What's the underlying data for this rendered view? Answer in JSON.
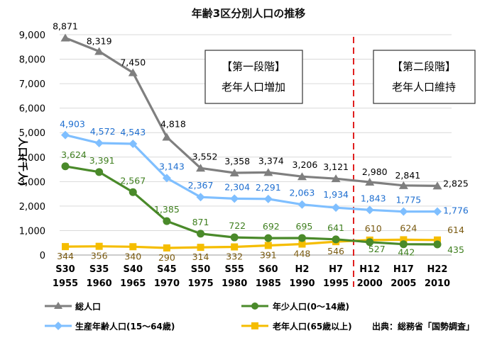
{
  "chart_data": {
    "type": "line",
    "title": "年齢3区分別人口の推移",
    "ylabel": "人口(千人)",
    "ylim": [
      0,
      9000
    ],
    "yticks": [
      "0",
      "1,000",
      "2,000",
      "3,000",
      "4,000",
      "5,000",
      "6,000",
      "7,000",
      "8,000",
      "9,000"
    ],
    "categories": [
      {
        "era": "S30",
        "year": "1955"
      },
      {
        "era": "S35",
        "year": "1960"
      },
      {
        "era": "S40",
        "year": "1965"
      },
      {
        "era": "S45",
        "year": "1970"
      },
      {
        "era": "S50",
        "year": "1975"
      },
      {
        "era": "S55",
        "year": "1980"
      },
      {
        "era": "S60",
        "year": "1985"
      },
      {
        "era": "H2",
        "year": "1990"
      },
      {
        "era": "H7",
        "year": "1995"
      },
      {
        "era": "H12",
        "year": "2000"
      },
      {
        "era": "H17",
        "year": "2005"
      },
      {
        "era": "H22",
        "year": "2010"
      }
    ],
    "series": [
      {
        "name": "総人口",
        "marker": "triangle",
        "color": "#7f7f7f",
        "label_color": "#000000",
        "values": [
          8871,
          8319,
          7450,
          4818,
          3552,
          3358,
          3374,
          3206,
          3121,
          2980,
          2841,
          2825
        ],
        "labels": [
          "8,871",
          "8,319",
          "7,450",
          "4,818",
          "3,552",
          "3,358",
          "3,374",
          "3,206",
          "3,121",
          "2,980",
          "2,841",
          "2,825"
        ]
      },
      {
        "name": "生産年齢人口(15〜64歳)",
        "marker": "diamond",
        "color": "#7fbfff",
        "label_color": "#1f6fd0",
        "values": [
          4903,
          4572,
          4543,
          3143,
          2367,
          2304,
          2291,
          2063,
          1934,
          1843,
          1775,
          1776
        ],
        "labels": [
          "4,903",
          "4,572",
          "4,543",
          "3,143",
          "2,367",
          "2,304",
          "2,291",
          "2,063",
          "1,934",
          "1,843",
          "1,775",
          "1,776"
        ]
      },
      {
        "name": "年少人口(0〜14歳)",
        "marker": "circle",
        "color": "#4a8a2a",
        "label_color": "#3f7f1f",
        "values": [
          3624,
          3391,
          2567,
          1385,
          871,
          722,
          692,
          695,
          641,
          527,
          442,
          435
        ],
        "labels": [
          "3,624",
          "3,391",
          "2,567",
          "1,385",
          "871",
          "722",
          "692",
          "695",
          "641",
          "527",
          "442",
          "435"
        ]
      },
      {
        "name": "老年人口(65歳以上)",
        "marker": "square",
        "color": "#f5bd00",
        "label_color": "#7a5a10",
        "values": [
          344,
          356,
          340,
          290,
          314,
          332,
          391,
          448,
          546,
          610,
          624,
          614
        ],
        "labels": [
          "344",
          "356",
          "340",
          "290",
          "314",
          "332",
          "391",
          "448",
          "546",
          "610",
          "624",
          "614"
        ]
      }
    ],
    "annotations": [
      {
        "heading": "【第一段階】",
        "text": "老年人口増加"
      },
      {
        "heading": "【第二段階】",
        "text": "老年人口維持"
      }
    ],
    "divider_color": "#e02020",
    "grid": true,
    "legend_position": "bottom",
    "source": "出典：総務省「国勢調査」"
  }
}
